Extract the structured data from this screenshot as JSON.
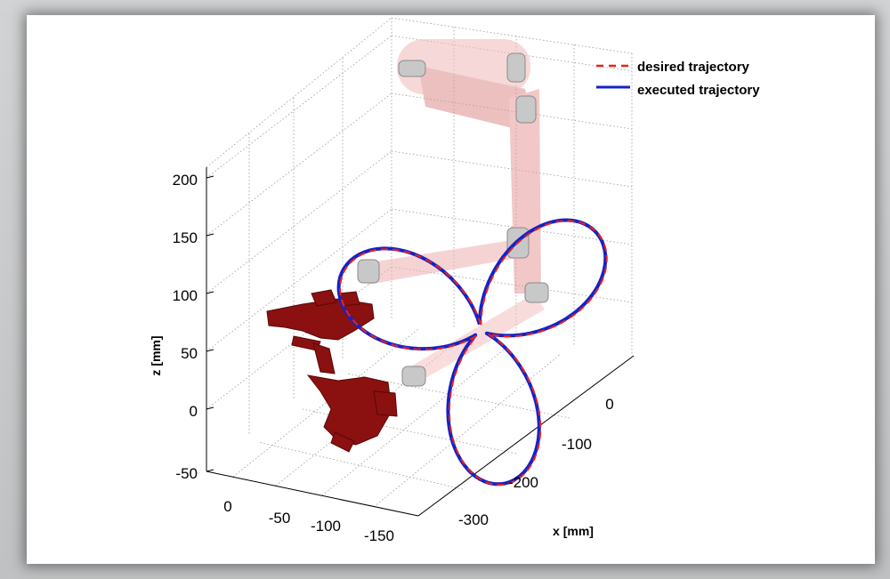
{
  "chart_data": {
    "type": "3d-line",
    "title": "",
    "xlabel": "x [mm]",
    "ylabel": "",
    "zlabel": "z [mm]",
    "x_ticks": [
      "0",
      "-100",
      "-200",
      "-300"
    ],
    "y_ticks": [
      "0",
      "-50",
      "-100",
      "-150"
    ],
    "z_ticks": [
      "200",
      "150",
      "100",
      "50",
      "0",
      "-50"
    ],
    "xlim": [
      -350,
      50
    ],
    "ylim": [
      -175,
      25
    ],
    "zlim": [
      -50,
      200
    ],
    "grid": true,
    "legend_position": "top-right",
    "series": [
      {
        "name": "desired trajectory",
        "style": "dashed",
        "color": "#e8221c",
        "shape": "three-lobed trefoil curve"
      },
      {
        "name": "executed trajectory",
        "style": "solid",
        "color": "#1422c8",
        "shape": "three-lobed trefoil curve"
      }
    ],
    "overlay": "semi-transparent robot arm links and robotic hand models"
  },
  "colors": {
    "desired": "#e8221c",
    "executed": "#1422c8",
    "robot_link": "#e89a9a",
    "hand": "#8b1010"
  }
}
